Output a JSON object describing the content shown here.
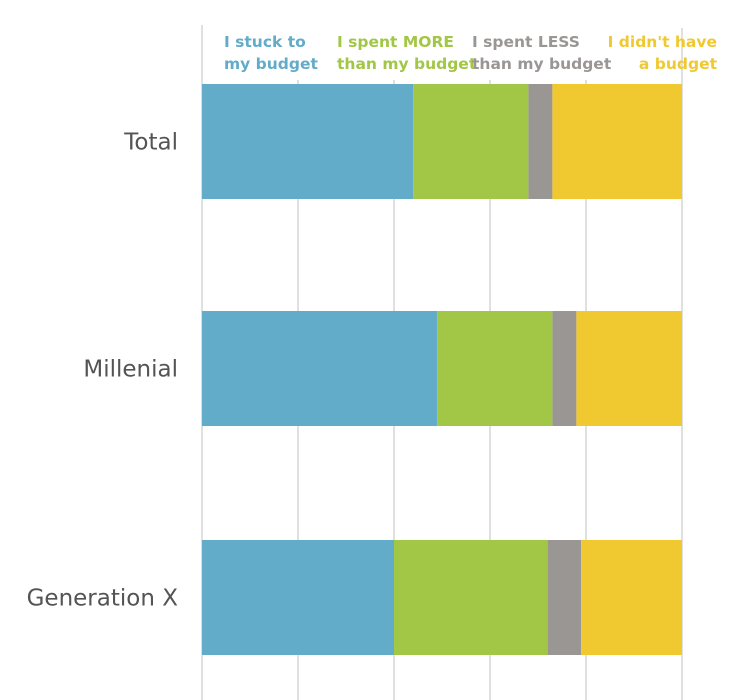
{
  "chart_data": {
    "type": "bar",
    "orientation": "horizontal",
    "stacked": true,
    "categories": [
      "Total",
      "Millenial",
      "Generation X"
    ],
    "series": [
      {
        "name": "I stuck to my budget",
        "legend_lines": [
          "I stuck to",
          "my budget"
        ],
        "color": "#62acc9",
        "values": [
          44,
          49,
          40
        ]
      },
      {
        "name": "I spent MORE than my budget",
        "legend_lines": [
          "I spent MORE",
          "than my budget"
        ],
        "color": "#a2c645",
        "values": [
          24,
          24,
          32
        ]
      },
      {
        "name": "I spent LESS than my budget",
        "legend_lines": [
          "I spent LESS",
          "than my budget"
        ],
        "color": "#999694",
        "values": [
          5,
          5,
          7
        ]
      },
      {
        "name": "I didn't have a budget",
        "legend_lines": [
          "I didn't have",
          "a budget"
        ],
        "color": "#f0c931",
        "values": [
          27,
          22,
          21
        ]
      }
    ],
    "xlim": [
      0,
      100
    ],
    "x_gridlines": [
      0,
      20,
      40,
      60,
      80,
      100
    ],
    "grid": true,
    "legend_position": "top",
    "title": "",
    "xlabel": "",
    "ylabel": ""
  }
}
